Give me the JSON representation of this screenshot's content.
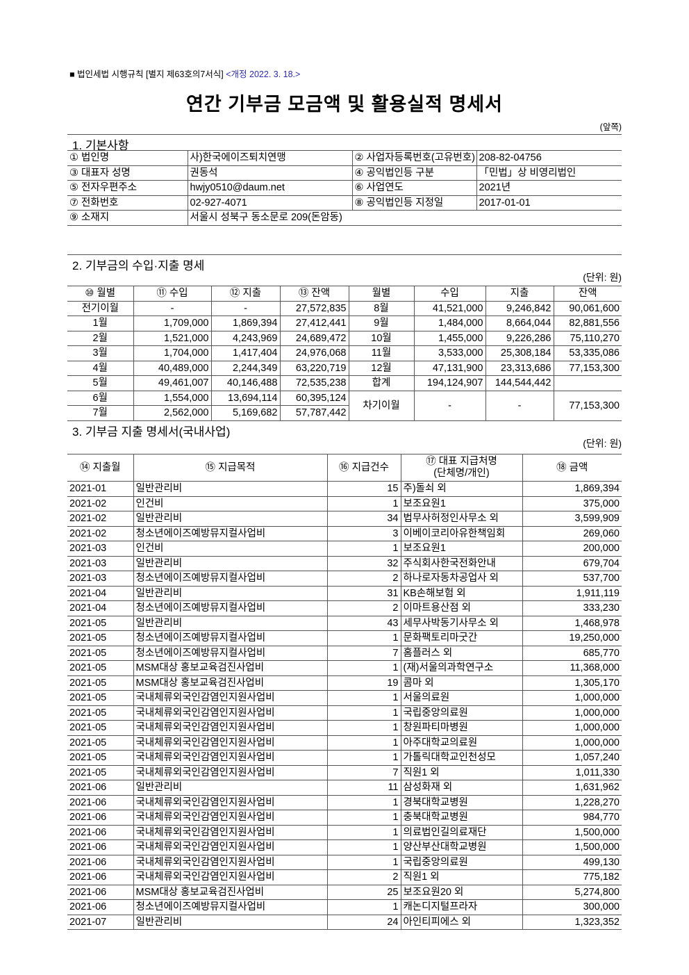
{
  "header": {
    "form_ref": "■ 법인세법 시행규칙 [별지 제63호의7서식]",
    "revision": "<개정 2022. 3. 18.>",
    "title": "연간 기부금 모금액 및 활용실적 명세서",
    "page_side": "(앞쪽)"
  },
  "section1": {
    "title": "1. 기본사항",
    "rows": [
      [
        "①  법인명",
        "사)한국에이즈퇴치연맹",
        "② 사업자등록번호(고유번호)",
        "208-82-04756"
      ],
      [
        "③  대표자 성명",
        "권동석",
        "④  공익법인등 구분",
        "「민법」상 비영리법인"
      ],
      [
        "⑤  전자우편주소",
        "hwjy0510@daum.net",
        "⑥  사업연도",
        "2021년"
      ],
      [
        "⑦  전화번호",
        "02-927-4071",
        "⑧  공익법인등 지정일",
        "2017-01-01"
      ]
    ],
    "address_label": "⑨  소재지",
    "address": "서울시 성북구 동소문로 209(돈암동)"
  },
  "section2": {
    "title": "2. 기부금의 수입·지출 명세",
    "unit": "(단위: 원)",
    "headers": [
      "⑩ 월별",
      "⑪  수입",
      "⑫ 지출",
      "⑬ 잔액",
      "월별",
      "수입",
      "지출",
      "잔액"
    ],
    "rows": [
      [
        "전기이월",
        "-",
        "-",
        "27,572,835",
        "8월",
        "41,521,000",
        "9,246,842",
        "90,061,600"
      ],
      [
        "1월",
        "1,709,000",
        "1,869,394",
        "27,412,441",
        "9월",
        "1,484,000",
        "8,664,044",
        "82,881,556"
      ],
      [
        "2월",
        "1,521,000",
        "4,243,969",
        "24,689,472",
        "10월",
        "1,455,000",
        "9,226,286",
        "75,110,270"
      ],
      [
        "3월",
        "1,704,000",
        "1,417,404",
        "24,976,068",
        "11월",
        "3,533,000",
        "25,308,184",
        "53,335,086"
      ],
      [
        "4월",
        "40,489,000",
        "2,244,349",
        "63,220,719",
        "12월",
        "47,131,900",
        "23,313,686",
        "77,153,300"
      ],
      [
        "5월",
        "49,461,007",
        "40,146,488",
        "72,535,238",
        "합계",
        "194,124,907",
        "144,544,442",
        ""
      ],
      [
        "6월",
        "1,554,000",
        "13,694,114",
        "60,395,124"
      ],
      [
        "7월",
        "2,562,000",
        "5,169,682",
        "57,787,442"
      ]
    ],
    "carry": [
      "차기이월",
      "-",
      "-",
      "77,153,300"
    ]
  },
  "section3": {
    "title": "3. 기부금 지출 명세서(국내사업)",
    "unit": "(단위: 원)",
    "headers": [
      "⑭ 지출월",
      "⑮  지급목적",
      "⑯ 지급건수",
      "⑰ 대표 지급처명\n(단체명/개인)",
      "⑱ 금액"
    ],
    "rows": [
      [
        "2021-01",
        "일반관리비",
        "15",
        "주)돌쇠 외",
        "1,869,394"
      ],
      [
        "2021-02",
        "인건비",
        "1",
        "보조요원1",
        "375,000"
      ],
      [
        "2021-02",
        "일반관리비",
        "34",
        "법무사허정인사무소 외",
        "3,599,909"
      ],
      [
        "2021-02",
        "청소년에이즈예방뮤지컬사업비",
        "3",
        "이베이코리아유한책임회",
        "269,060"
      ],
      [
        "2021-03",
        "인건비",
        "1",
        "보조요원1",
        "200,000"
      ],
      [
        "2021-03",
        "일반관리비",
        "32",
        "주식회사한국전화안내",
        "679,704"
      ],
      [
        "2021-03",
        "청소년에이즈예방뮤지컬사업비",
        "2",
        "하나로자동차공업사 외",
        "537,700"
      ],
      [
        "2021-04",
        "일반관리비",
        "31",
        "KB손해보험 외",
        "1,911,119"
      ],
      [
        "2021-04",
        "청소년에이즈예방뮤지컬사업비",
        "2",
        "이마트용산점 외",
        "333,230"
      ],
      [
        "2021-05",
        "일반관리비",
        "43",
        "세무사박동기사무소 외",
        "1,468,978"
      ],
      [
        "2021-05",
        "청소년에이즈예방뮤지컬사업비",
        "1",
        "문화팩토리마굿간",
        "19,250,000"
      ],
      [
        "2021-05",
        "청소년에이즈예방뮤지컬사업비",
        "7",
        "홈플러스 외",
        "685,770"
      ],
      [
        "2021-05",
        "MSM대상 홍보교육검진사업비",
        "1",
        "(재)서울의과학연구소",
        "11,368,000"
      ],
      [
        "2021-05",
        "MSM대상 홍보교육검진사업비",
        "19",
        "콤마 외",
        "1,305,170"
      ],
      [
        "2021-05",
        "국내체류외국인감염인지원사업비",
        "1",
        "서울의료원",
        "1,000,000"
      ],
      [
        "2021-05",
        "국내체류외국인감염인지원사업비",
        "1",
        "국립중앙의료원",
        "1,000,000"
      ],
      [
        "2021-05",
        "국내체류외국인감염인지원사업비",
        "1",
        "창원파티마병원",
        "1,000,000"
      ],
      [
        "2021-05",
        "국내체류외국인감염인지원사업비",
        "1",
        "아주대학교의료원",
        "1,000,000"
      ],
      [
        "2021-05",
        "국내체류외국인감염인지원사업비",
        "1",
        "가톨릭대학교인천성모",
        "1,057,240"
      ],
      [
        "2021-05",
        "국내체류외국인감염인지원사업비",
        "7",
        "직원1 외",
        "1,011,330"
      ],
      [
        "2021-06",
        "일반관리비",
        "11",
        "삼성화재 외",
        "1,631,962"
      ],
      [
        "2021-06",
        "국내체류외국인감염인지원사업비",
        "1",
        "경북대학교병원",
        "1,228,270"
      ],
      [
        "2021-06",
        "국내체류외국인감염인지원사업비",
        "1",
        "충북대학교병원",
        "984,770"
      ],
      [
        "2021-06",
        "국내체류외국인감염인지원사업비",
        "1",
        "의료법인길의료재단",
        "1,500,000"
      ],
      [
        "2021-06",
        "국내체류외국인감염인지원사업비",
        "1",
        "양산부산대학교병원",
        "1,500,000"
      ],
      [
        "2021-06",
        "국내체류외국인감염인지원사업비",
        "1",
        "국립중앙의료원",
        "499,130"
      ],
      [
        "2021-06",
        "국내체류외국인감염인지원사업비",
        "2",
        "직원1 외",
        "775,182"
      ],
      [
        "2021-06",
        "MSM대상 홍보교육검진사업비",
        "25",
        "보조요원20 외",
        "5,274,800"
      ],
      [
        "2021-06",
        "청소년에이즈예방뮤지컬사업비",
        "1",
        "캐논디지털프라자",
        "300,000"
      ],
      [
        "2021-07",
        "일반관리비",
        "24",
        "아인티피에스 외",
        "1,323,352"
      ]
    ]
  }
}
